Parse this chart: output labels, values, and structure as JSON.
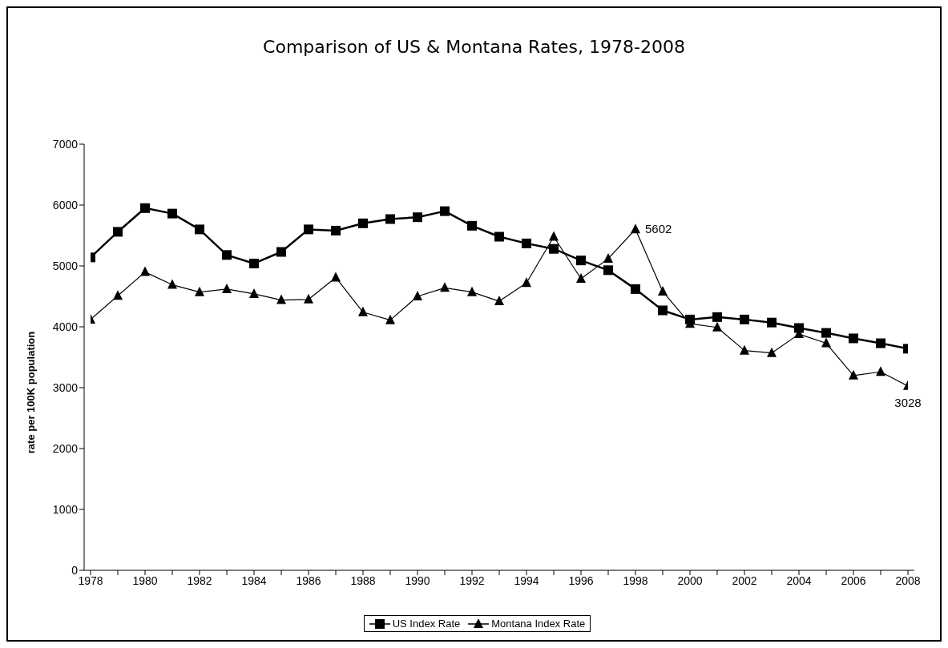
{
  "chart_data": {
    "type": "line",
    "title": "Comparison of US & Montana Rates, 1978-2008",
    "ylabel": "rate per 100K population",
    "categories": [
      "1978",
      null,
      "1980",
      null,
      "1982",
      null,
      "1984",
      null,
      "1986",
      null,
      "1988",
      null,
      "1990",
      null,
      "1992",
      null,
      "1994",
      null,
      "1996",
      null,
      "1998",
      null,
      "2000",
      null,
      "2002",
      null,
      "2004",
      null,
      "2006",
      null,
      "2008"
    ],
    "series": [
      {
        "name": "US Index Rate",
        "color": "#000000",
        "marker": "square",
        "values": [
          5140,
          5560,
          5950,
          5860,
          5600,
          5180,
          5040,
          5230,
          5600,
          5580,
          5700,
          5770,
          5800,
          5900,
          5660,
          5480,
          5370,
          5280,
          5090,
          4930,
          4620,
          4270,
          4120,
          4160,
          4120,
          4070,
          3980,
          3900,
          3810,
          3730,
          3640
        ]
      },
      {
        "name": "Montana Index Rate",
        "color": "#000000",
        "marker": "triangle",
        "values": [
          4120,
          4510,
          4900,
          4690,
          4570,
          4620,
          4540,
          4440,
          4450,
          4810,
          4240,
          4110,
          4500,
          4640,
          4570,
          4420,
          4720,
          5480,
          4790,
          5120,
          5602,
          4580,
          4050,
          3990,
          3610,
          3570,
          3880,
          3730,
          3200,
          3260,
          3028
        ],
        "value_labels": [
          null,
          null,
          null,
          null,
          null,
          null,
          null,
          null,
          null,
          null,
          null,
          null,
          null,
          null,
          null,
          null,
          null,
          null,
          null,
          null,
          "5602",
          null,
          null,
          null,
          null,
          null,
          null,
          null,
          null,
          null,
          "3028"
        ]
      }
    ],
    "ylim": [
      0,
      7000
    ],
    "yticks": [
      0,
      1000,
      2000,
      3000,
      4000,
      5000,
      6000,
      7000
    ],
    "grid": false,
    "legend": "bottom",
    "line_style": "solid"
  }
}
